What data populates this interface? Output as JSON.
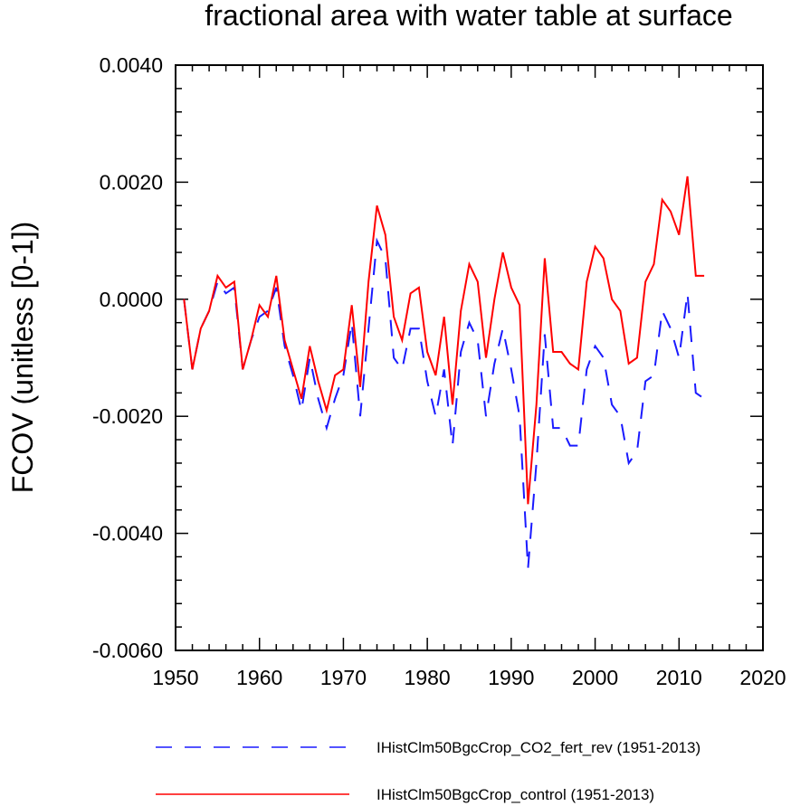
{
  "chart_data": {
    "type": "line",
    "title": "fractional area with water table at surface",
    "xlabel": "",
    "ylabel": "FCOV  (unitless [0-1])",
    "xlim": [
      1950,
      2020
    ],
    "ylim": [
      -0.006,
      0.004
    ],
    "xticks": [
      1950,
      1960,
      1970,
      1980,
      1990,
      2000,
      2010,
      2020
    ],
    "xtick_labels": [
      "1950",
      "1960",
      "1970",
      "1980",
      "1990",
      "2000",
      "2010",
      "2020"
    ],
    "yticks": [
      -0.006,
      -0.004,
      -0.002,
      0.0,
      0.002,
      0.004
    ],
    "ytick_labels": [
      "-0.0060",
      "-0.0040",
      "-0.0020",
      "0.0000",
      "0.0020",
      "0.0040"
    ],
    "grid": false,
    "legend_position": "bottom",
    "x": [
      1951,
      1952,
      1953,
      1954,
      1955,
      1956,
      1957,
      1958,
      1959,
      1960,
      1961,
      1962,
      1963,
      1964,
      1965,
      1966,
      1967,
      1968,
      1969,
      1970,
      1971,
      1972,
      1973,
      1974,
      1975,
      1976,
      1977,
      1978,
      1979,
      1980,
      1981,
      1982,
      1983,
      1984,
      1985,
      1986,
      1987,
      1988,
      1989,
      1990,
      1991,
      1992,
      1993,
      1994,
      1995,
      1996,
      1997,
      1998,
      1999,
      2000,
      2001,
      2002,
      2003,
      2004,
      2005,
      2006,
      2007,
      2008,
      2009,
      2010,
      2011,
      2012,
      2013
    ],
    "series": [
      {
        "name": "IHistClm50BgcCrop_CO2_fert_rev (1951-2013)",
        "color": "#1a1aff",
        "style": "dashed",
        "values": [
          0.0,
          -0.0012,
          -0.0005,
          -0.0002,
          0.0003,
          0.0001,
          0.0002,
          -0.0012,
          -0.0007,
          -0.0003,
          -0.0002,
          0.0002,
          -0.0008,
          -0.0013,
          -0.0019,
          -0.001,
          -0.0017,
          -0.0022,
          -0.0017,
          -0.0013,
          -0.0004,
          -0.002,
          -0.0005,
          0.001,
          0.0007,
          -0.001,
          -0.0012,
          -0.0005,
          -0.0005,
          -0.0014,
          -0.002,
          -0.0012,
          -0.0025,
          -0.0009,
          -0.0004,
          -0.0007,
          -0.002,
          -0.0011,
          -0.0005,
          -0.0012,
          -0.002,
          -0.0046,
          -0.0028,
          -0.0006,
          -0.0022,
          -0.0022,
          -0.0025,
          -0.0025,
          -0.0012,
          -0.0008,
          -0.001,
          -0.0018,
          -0.002,
          -0.0028,
          -0.0026,
          -0.0014,
          -0.0013,
          -0.0002,
          -0.0005,
          -0.001,
          0.0001,
          -0.0016,
          -0.0017
        ]
      },
      {
        "name": "IHistClm50BgcCrop_control (1951-2013)",
        "color": "#ff0000",
        "style": "solid",
        "values": [
          0.0,
          -0.0012,
          -0.0005,
          -0.0002,
          0.0004,
          0.0002,
          0.0003,
          -0.0012,
          -0.0007,
          -0.0001,
          -0.0003,
          0.0004,
          -0.0007,
          -0.0012,
          -0.0017,
          -0.0008,
          -0.0014,
          -0.0019,
          -0.0013,
          -0.0012,
          -0.0001,
          -0.0015,
          0.0003,
          0.0016,
          0.0011,
          -0.0003,
          -0.0007,
          0.0001,
          0.0002,
          -0.0009,
          -0.0013,
          -0.0003,
          -0.0018,
          -0.0002,
          0.0006,
          0.0003,
          -0.001,
          0.0,
          0.0008,
          0.0002,
          -0.0001,
          -0.0035,
          -0.0018,
          0.0007,
          -0.0009,
          -0.0009,
          -0.0011,
          -0.0012,
          0.0003,
          0.0009,
          0.0007,
          0.0,
          -0.0002,
          -0.0011,
          -0.001,
          0.0003,
          0.0006,
          0.0017,
          0.0015,
          0.0011,
          0.0021,
          0.0004,
          0.0004
        ]
      }
    ]
  }
}
